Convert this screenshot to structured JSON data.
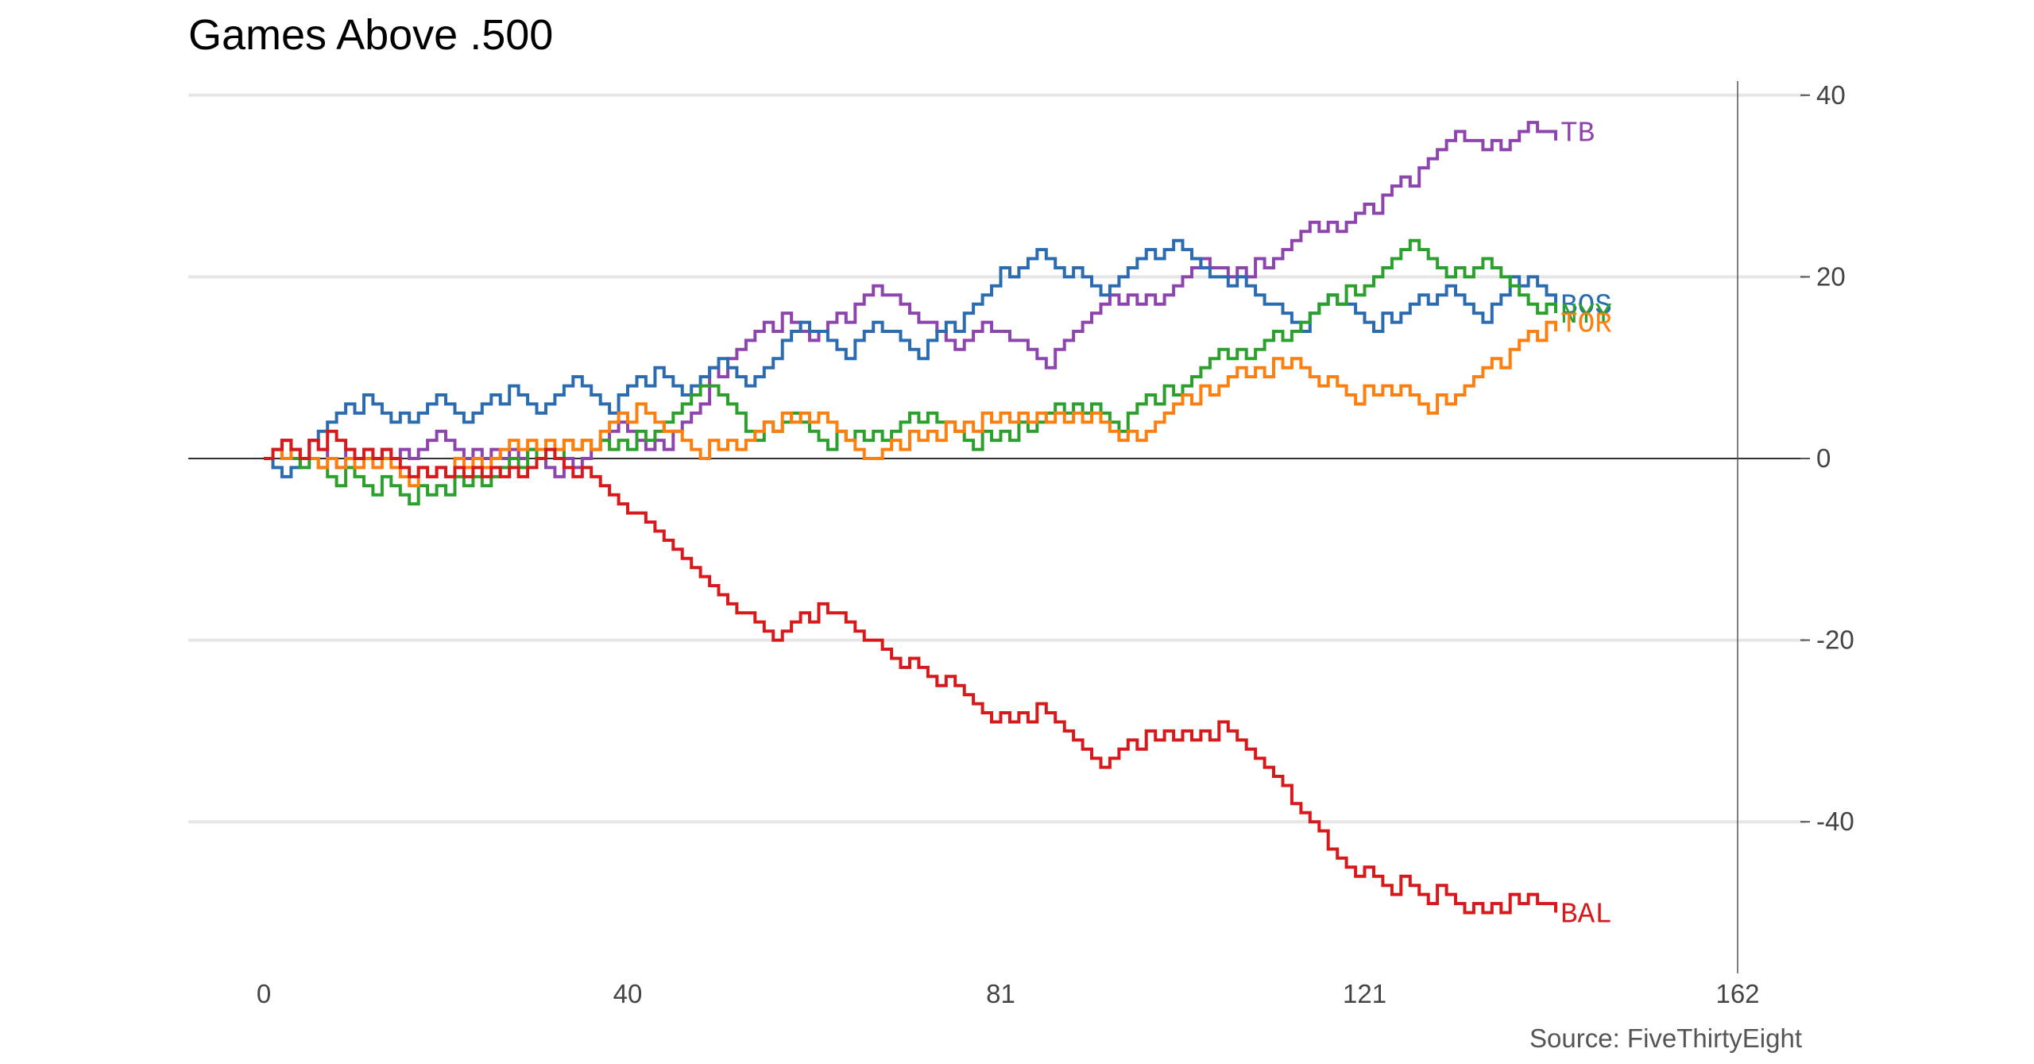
{
  "chart_data": {
    "type": "line",
    "title": "Games Above .500",
    "source": "Source: FiveThirtyEight",
    "x_ticks": [
      0,
      40,
      81,
      121,
      162
    ],
    "y_ticks": [
      40,
      20,
      0,
      -20,
      -40
    ],
    "xlim": [
      -8,
      170
    ],
    "ylim": [
      -56,
      42
    ],
    "grid": true,
    "series": [
      {
        "name": "TB",
        "color": "#8e44ad",
        "last_game": 142,
        "final": 36,
        "keyframes": [
          [
            0,
            0
          ],
          [
            2,
            2
          ],
          [
            4,
            1
          ],
          [
            8,
            0
          ],
          [
            16,
            0
          ],
          [
            18,
            2
          ],
          [
            22,
            0
          ],
          [
            28,
            0
          ],
          [
            32,
            -1
          ],
          [
            36,
            1
          ],
          [
            38,
            3
          ],
          [
            42,
            1
          ],
          [
            44,
            2
          ],
          [
            48,
            9
          ],
          [
            50,
            10
          ],
          [
            56,
            15
          ],
          [
            60,
            13
          ],
          [
            64,
            16
          ],
          [
            68,
            19
          ],
          [
            72,
            14
          ],
          [
            76,
            12
          ],
          [
            80,
            15
          ],
          [
            82,
            14
          ],
          [
            86,
            11
          ],
          [
            92,
            17
          ],
          [
            98,
            17
          ],
          [
            102,
            23
          ],
          [
            104,
            20
          ],
          [
            108,
            21
          ],
          [
            114,
            25
          ],
          [
            118,
            25
          ],
          [
            122,
            28
          ],
          [
            126,
            31
          ],
          [
            132,
            36
          ],
          [
            134,
            34
          ],
          [
            140,
            37
          ],
          [
            142,
            36
          ]
        ]
      },
      {
        "name": "BOS",
        "color": "#2b6cb0",
        "last_game": 142,
        "final": 17,
        "keyframes": [
          [
            0,
            0
          ],
          [
            2,
            -2
          ],
          [
            4,
            1
          ],
          [
            10,
            6
          ],
          [
            14,
            4
          ],
          [
            18,
            6
          ],
          [
            22,
            4
          ],
          [
            26,
            7
          ],
          [
            30,
            5
          ],
          [
            34,
            9
          ],
          [
            38,
            6
          ],
          [
            42,
            9
          ],
          [
            46,
            7
          ],
          [
            50,
            11
          ],
          [
            52,
            7
          ],
          [
            56,
            12
          ],
          [
            60,
            15
          ],
          [
            64,
            12
          ],
          [
            68,
            15
          ],
          [
            72,
            12
          ],
          [
            76,
            15
          ],
          [
            80,
            20
          ],
          [
            84,
            22
          ],
          [
            88,
            20
          ],
          [
            92,
            18
          ],
          [
            96,
            22
          ],
          [
            100,
            24
          ],
          [
            104,
            19
          ],
          [
            110,
            18
          ],
          [
            114,
            15
          ],
          [
            118,
            18
          ],
          [
            122,
            15
          ],
          [
            126,
            17
          ],
          [
            130,
            19
          ],
          [
            134,
            16
          ],
          [
            136,
            19
          ],
          [
            142,
            17
          ]
        ]
      },
      {
        "name": "NYY",
        "color": "#2ca02c",
        "last_game": 142,
        "final": 16,
        "keyframes": [
          [
            0,
            0
          ],
          [
            2,
            1
          ],
          [
            4,
            -1
          ],
          [
            8,
            -2
          ],
          [
            12,
            -3
          ],
          [
            16,
            -4
          ],
          [
            20,
            -3
          ],
          [
            24,
            -3
          ],
          [
            28,
            0
          ],
          [
            32,
            1
          ],
          [
            36,
            1
          ],
          [
            40,
            2
          ],
          [
            46,
            6
          ],
          [
            48,
            9
          ],
          [
            52,
            4
          ],
          [
            54,
            3
          ],
          [
            58,
            5
          ],
          [
            62,
            2
          ],
          [
            66,
            2
          ],
          [
            70,
            4
          ],
          [
            74,
            5
          ],
          [
            78,
            2
          ],
          [
            82,
            3
          ],
          [
            86,
            5
          ],
          [
            90,
            5
          ],
          [
            94,
            4
          ],
          [
            98,
            7
          ],
          [
            104,
            11
          ],
          [
            110,
            13
          ],
          [
            114,
            15
          ],
          [
            118,
            18
          ],
          [
            122,
            20
          ],
          [
            126,
            24
          ],
          [
            130,
            20
          ],
          [
            134,
            22
          ],
          [
            138,
            18
          ],
          [
            140,
            16
          ],
          [
            142,
            16
          ]
        ]
      },
      {
        "name": "TOR",
        "color": "#ff7f0e",
        "last_game": 142,
        "final": 15,
        "keyframes": [
          [
            0,
            0
          ],
          [
            4,
            1
          ],
          [
            6,
            -1
          ],
          [
            10,
            -1
          ],
          [
            16,
            -2
          ],
          [
            20,
            -1
          ],
          [
            26,
            1
          ],
          [
            30,
            1
          ],
          [
            36,
            2
          ],
          [
            40,
            5
          ],
          [
            44,
            4
          ],
          [
            48,
            1
          ],
          [
            50,
            1
          ],
          [
            56,
            4
          ],
          [
            60,
            4
          ],
          [
            64,
            2
          ],
          [
            66,
            -1
          ],
          [
            70,
            2
          ],
          [
            74,
            3
          ],
          [
            78,
            4
          ],
          [
            82,
            4
          ],
          [
            86,
            4
          ],
          [
            90,
            4
          ],
          [
            94,
            2
          ],
          [
            98,
            4
          ],
          [
            102,
            7
          ],
          [
            106,
            9
          ],
          [
            110,
            10
          ],
          [
            116,
            8
          ],
          [
            120,
            7
          ],
          [
            124,
            7
          ],
          [
            128,
            6
          ],
          [
            132,
            8
          ],
          [
            136,
            11
          ],
          [
            140,
            14
          ],
          [
            142,
            15
          ]
        ]
      },
      {
        "name": "BAL",
        "color": "#d7191c",
        "last_game": 142,
        "final": -50,
        "keyframes": [
          [
            0,
            0
          ],
          [
            2,
            2
          ],
          [
            4,
            1
          ],
          [
            6,
            2
          ],
          [
            10,
            0
          ],
          [
            16,
            -2
          ],
          [
            24,
            -2
          ],
          [
            30,
            0
          ],
          [
            34,
            -2
          ],
          [
            40,
            -5
          ],
          [
            44,
            -9
          ],
          [
            48,
            -13
          ],
          [
            52,
            -18
          ],
          [
            56,
            -20
          ],
          [
            60,
            -17
          ],
          [
            62,
            -16
          ],
          [
            66,
            -19
          ],
          [
            70,
            -23
          ],
          [
            74,
            -25
          ],
          [
            80,
            -29
          ],
          [
            84,
            -28
          ],
          [
            88,
            -30
          ],
          [
            92,
            -34
          ],
          [
            96,
            -31
          ],
          [
            100,
            -31
          ],
          [
            104,
            -30
          ],
          [
            108,
            -32
          ],
          [
            112,
            -37
          ],
          [
            116,
            -42
          ],
          [
            120,
            -46
          ],
          [
            124,
            -47
          ],
          [
            128,
            -48
          ],
          [
            132,
            -50
          ],
          [
            136,
            -49
          ],
          [
            140,
            -48
          ],
          [
            142,
            -50
          ]
        ]
      }
    ]
  }
}
